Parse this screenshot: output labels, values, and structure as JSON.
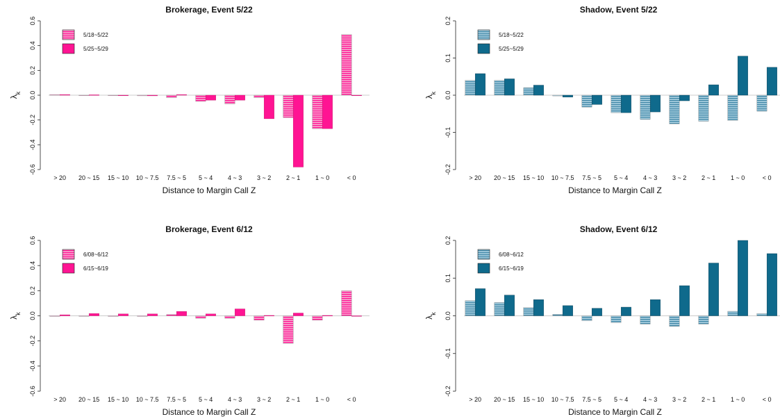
{
  "chart_data": [
    {
      "type": "bar",
      "title": "Brokerage, Event 5/22",
      "xlabel": "Distance to Margin Call Z",
      "ylabel": "λ",
      "ylabel_sub": "k",
      "ylim": [
        -0.6,
        0.6
      ],
      "yticks": [
        "-0.6",
        "-0.4",
        "-0.2",
        "0.0",
        "0.2",
        "0.4",
        "0.6"
      ],
      "legend_position": "top-left",
      "categories": [
        "> 20",
        "20 ~ 15",
        "15 ~ 10",
        "10 ~ 7.5",
        "7.5 ~ 5",
        "5 ~ 4",
        "4 ~ 3",
        "3 ~ 2",
        "2 ~ 1",
        "1 ~ 0",
        "< 0"
      ],
      "series": [
        {
          "name": "5/18~5/22",
          "pattern": "striped",
          "color": "#ff1493",
          "values": [
            0.005,
            0.0,
            -0.003,
            -0.005,
            -0.02,
            -0.05,
            -0.07,
            -0.02,
            -0.18,
            -0.27,
            0.49
          ]
        },
        {
          "name": "5/25~5/29",
          "pattern": "solid",
          "color": "#ff1493",
          "values": [
            0.005,
            0.003,
            -0.003,
            -0.005,
            0.005,
            -0.04,
            -0.04,
            -0.19,
            -0.58,
            -0.27,
            0.0
          ]
        }
      ]
    },
    {
      "type": "bar",
      "title": "Shadow, Event 5/22",
      "xlabel": "Distance to Margin Call Z",
      "ylabel": "λ",
      "ylabel_sub": "k",
      "ylim": [
        -0.2,
        0.2
      ],
      "yticks": [
        "-0.2",
        "-0.1",
        "0.0",
        "0.1",
        "0.2"
      ],
      "legend_position": "top-left",
      "categories": [
        "> 20",
        "20 ~ 15",
        "15 ~ 10",
        "10 ~ 7.5",
        "7.5 ~ 5",
        "5 ~ 4",
        "4 ~ 3",
        "3 ~ 2",
        "2 ~ 1",
        "1 ~ 0",
        "< 0"
      ],
      "series": [
        {
          "name": "5/18~5/22",
          "pattern": "striped",
          "color": "#0f6a8c",
          "values": [
            0.04,
            0.04,
            0.02,
            -0.002,
            -0.032,
            -0.047,
            -0.065,
            -0.077,
            -0.07,
            -0.068,
            -0.043
          ]
        },
        {
          "name": "5/25~5/29",
          "pattern": "solid",
          "color": "#0f6a8c",
          "values": [
            0.058,
            0.044,
            0.027,
            -0.005,
            -0.025,
            -0.047,
            -0.045,
            -0.015,
            0.028,
            0.105,
            0.075
          ]
        }
      ]
    },
    {
      "type": "bar",
      "title": "Brokerage, Event 6/12",
      "xlabel": "Distance to Margin Call Z",
      "ylabel": "λ",
      "ylabel_sub": "k",
      "ylim": [
        -0.6,
        0.6
      ],
      "yticks": [
        "-0.6",
        "-0.4",
        "-0.2",
        "0.0",
        "0.2",
        "0.4",
        "0.6"
      ],
      "legend_position": "top-left",
      "categories": [
        "> 20",
        "20 ~ 15",
        "15 ~ 10",
        "10 ~ 7.5",
        "7.5 ~ 5",
        "5 ~ 4",
        "4 ~ 3",
        "3 ~ 2",
        "2 ~ 1",
        "1 ~ 0",
        "< 0"
      ],
      "series": [
        {
          "name": "6/08~6/12",
          "pattern": "striped",
          "color": "#ff1493",
          "values": [
            -0.005,
            0.0,
            -0.005,
            -0.005,
            0.01,
            -0.02,
            -0.02,
            -0.035,
            -0.22,
            -0.035,
            0.2
          ]
        },
        {
          "name": "6/15~6/19",
          "pattern": "solid",
          "color": "#ff1493",
          "values": [
            0.008,
            0.018,
            0.015,
            0.015,
            0.035,
            0.015,
            0.055,
            0.003,
            0.022,
            0.003,
            0.0
          ]
        }
      ]
    },
    {
      "type": "bar",
      "title": "Shadow, Event 6/12",
      "xlabel": "Distance to Margin Call Z",
      "ylabel": "λ",
      "ylabel_sub": "k",
      "ylim": [
        -0.2,
        0.2
      ],
      "yticks": [
        "-0.2",
        "-0.1",
        "0.0",
        "0.1",
        "0.2"
      ],
      "legend_position": "top-left",
      "categories": [
        "> 20",
        "20 ~ 15",
        "15 ~ 10",
        "10 ~ 7.5",
        "7.5 ~ 5",
        "5 ~ 4",
        "4 ~ 3",
        "3 ~ 2",
        "2 ~ 1",
        "1 ~ 0",
        "< 0"
      ],
      "series": [
        {
          "name": "6/08~6/12",
          "pattern": "striped",
          "color": "#0f6a8c",
          "values": [
            0.04,
            0.035,
            0.022,
            0.004,
            -0.013,
            -0.018,
            -0.022,
            -0.028,
            -0.022,
            0.012,
            0.006
          ]
        },
        {
          "name": "6/15~6/19",
          "pattern": "solid",
          "color": "#0f6a8c",
          "values": [
            0.072,
            0.055,
            0.043,
            0.027,
            0.02,
            0.023,
            0.043,
            0.08,
            0.14,
            0.2,
            0.165
          ]
        }
      ]
    }
  ]
}
